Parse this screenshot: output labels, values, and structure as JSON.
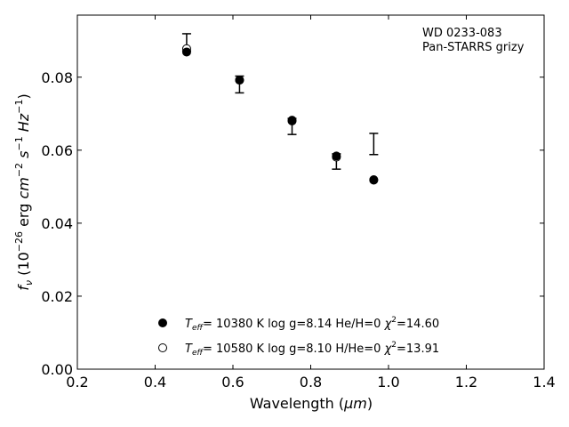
{
  "chart_data": {
    "type": "scatter",
    "xlabel_text": "Wavelength (",
    "xlabel_unit": "μm",
    "xlabel_close": ")",
    "ylabel_f": "f",
    "ylabel_sub": "ν",
    "ylabel_a": " (10",
    "ylabel_exp1": "−26",
    "ylabel_b": " erg ",
    "ylabel_cm": "cm",
    "ylabel_exp2": "−2",
    "ylabel_s": "s",
    "ylabel_exp3": "−1",
    "ylabel_hz": "Hz",
    "ylabel_exp4": "−1",
    "ylabel_c": ")",
    "xlim": [
      0.2,
      1.4
    ],
    "ylim": [
      0.0,
      0.097
    ],
    "xticks": [
      0.2,
      0.4,
      0.6,
      0.8,
      1.0,
      1.2,
      1.4
    ],
    "xtick_labels": [
      "0.2",
      "0.4",
      "0.6",
      "0.8",
      "1.0",
      "1.2",
      "1.4"
    ],
    "yticks": [
      0.0,
      0.02,
      0.04,
      0.06,
      0.08
    ],
    "ytick_labels": [
      "0.00",
      "0.02",
      "0.04",
      "0.06",
      "0.08"
    ],
    "annotation": [
      "WD 0233-083",
      "Pan-STARRS grizy"
    ],
    "observed": {
      "x": [
        0.481,
        0.617,
        0.752,
        0.866,
        0.962
      ],
      "y": [
        0.0875,
        0.0783,
        0.0667,
        0.0571,
        0.0617
      ],
      "yerr_low": [
        0.0003,
        0.0026,
        0.0024,
        0.0023,
        0.0029
      ],
      "yerr_high": [
        0.0044,
        0.002,
        0.002,
        0.0019,
        0.0029
      ]
    },
    "series": [
      {
        "name": "Teff= 10380 K  log g=8.14  He/H=0  χ2=14.60",
        "name_T": "T",
        "name_sub": "eff",
        "name_rest": "= 10380 K  log g=8.14  He/H=0  ",
        "name_chi": "χ",
        "name_sup": "2",
        "name_end": "=14.60",
        "marker": "filled",
        "x": [
          0.481,
          0.617,
          0.752,
          0.866,
          0.962
        ],
        "y": [
          0.0869,
          0.0792,
          0.0682,
          0.0584,
          0.0519
        ]
      },
      {
        "name": "Teff= 10580 K  log g=8.10  H/He=0  χ2=13.91",
        "name_T": "T",
        "name_sub": "eff",
        "name_rest": "= 10580 K  log g=8.10  H/He=0  ",
        "name_chi": "χ",
        "name_sup": "2",
        "name_end": "=13.91",
        "marker": "open",
        "x": [
          0.481,
          0.617,
          0.752,
          0.866,
          0.962
        ],
        "y": [
          0.0878,
          0.0792,
          0.068,
          0.0581,
          0.0518
        ]
      }
    ],
    "legend_position": "lower center",
    "grid": false,
    "colors": {
      "marker": "#000000",
      "axes": "#000000",
      "background": "#ffffff"
    }
  }
}
